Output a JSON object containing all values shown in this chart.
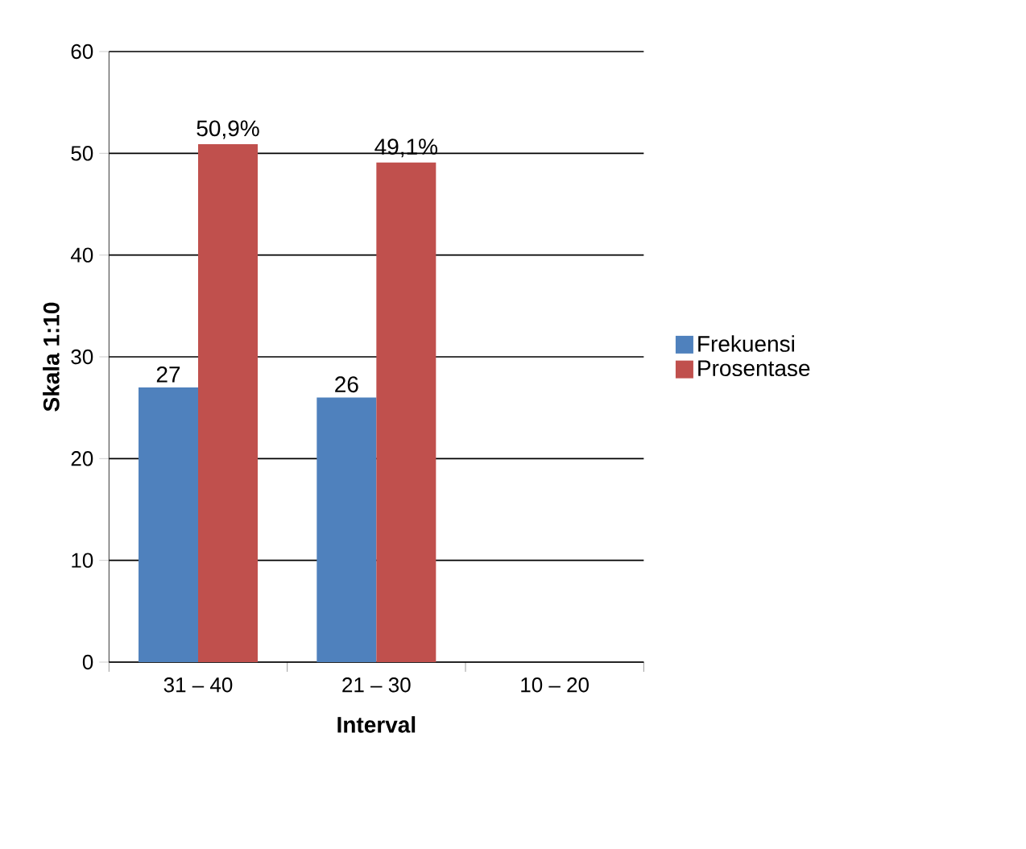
{
  "chart_data": {
    "type": "bar",
    "xlabel": "Interval",
    "ylabel": "Skala 1:10",
    "categories": [
      "31 – 40",
      "21 – 30",
      "10 – 20"
    ],
    "series": [
      {
        "name": "Frekuensi",
        "color": "#4f81bd",
        "values": [
          27,
          26,
          null
        ],
        "value_labels": [
          "27",
          "26",
          null
        ]
      },
      {
        "name": "Prosentase",
        "color": "#c0504d",
        "values": [
          50.9,
          49.1,
          null
        ],
        "value_labels": [
          "50,9%",
          "49,1%",
          null
        ]
      }
    ],
    "ylim": [
      0,
      60
    ],
    "yticks": [
      0,
      10,
      20,
      30,
      40,
      50,
      60
    ],
    "grid": "y",
    "legend": "right"
  }
}
